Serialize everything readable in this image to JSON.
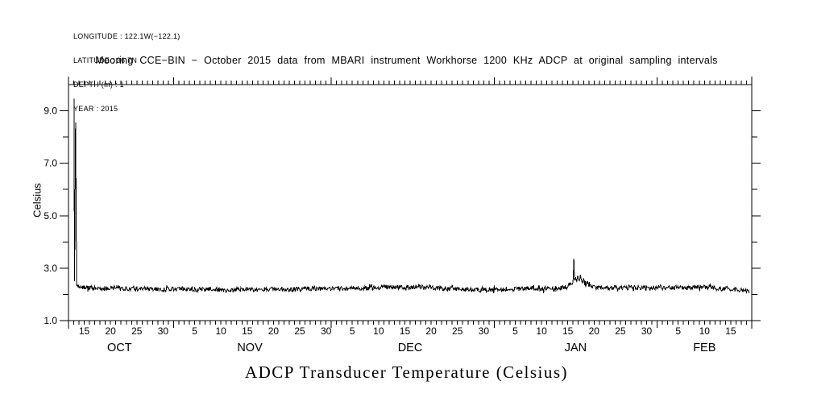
{
  "meta": {
    "lines": [
      "LONGITUDE : 122.1W(−122.1)",
      "LATITUDE : 36.7N",
      "DEPTH (m) : 1",
      "YEAR : 2015"
    ]
  },
  "header": {
    "title": "Mooring CCE−BIN − October 2015 data from MBARI instrument Workhorse 1200 KHz ADCP at original sampling intervals"
  },
  "footer": {
    "title": "ADCP Transducer Temperature (Celsius)"
  },
  "colors": {
    "stroke": "#000000",
    "background": "#ffffff"
  },
  "chart_data": {
    "type": "line",
    "title": "Mooring CCE−BIN − October 2015 data from MBARI instrument Workhorse 1200 KHz ADCP at original sampling intervals",
    "xlabel": "",
    "ylabel": "Celsius",
    "ylim": [
      1.0,
      10.0
    ],
    "grid": false,
    "legend": "none",
    "y_axis": {
      "min": 1.0,
      "max": 10.0,
      "major_ticks": [
        1,
        3,
        5,
        7,
        9
      ],
      "minor_ticks": [
        2,
        4,
        6,
        8
      ],
      "labels": [
        {
          "value": 9,
          "text": "9.0"
        },
        {
          "value": 7,
          "text": "7.0"
        },
        {
          "value": 5,
          "text": "5.0"
        },
        {
          "value": 3,
          "text": "3.0"
        },
        {
          "value": 1,
          "text": "1.0"
        }
      ]
    },
    "x_axis": {
      "start": "2015-10-12",
      "end": "2016-02-19",
      "span_days": 130,
      "tick_every_days": 1,
      "month_boundaries": [
        20,
        50,
        81,
        112
      ],
      "month_labels": [
        {
          "text": "OCT",
          "center_day": 9.7
        },
        {
          "text": "NOV",
          "center_day": 34.5
        },
        {
          "text": "DEC",
          "center_day": 65
        },
        {
          "text": "JAN",
          "center_day": 96.5
        },
        {
          "text": "FEB",
          "center_day": 121
        }
      ],
      "day_labels": [
        {
          "day": 3,
          "text": "15"
        },
        {
          "day": 8,
          "text": "20"
        },
        {
          "day": 13,
          "text": "25"
        },
        {
          "day": 18,
          "text": "30"
        },
        {
          "day": 24,
          "text": "5"
        },
        {
          "day": 29,
          "text": "10"
        },
        {
          "day": 34,
          "text": "15"
        },
        {
          "day": 39,
          "text": "20"
        },
        {
          "day": 44,
          "text": "25"
        },
        {
          "day": 49,
          "text": "30"
        },
        {
          "day": 54,
          "text": "5"
        },
        {
          "day": 59,
          "text": "10"
        },
        {
          "day": 64,
          "text": "15"
        },
        {
          "day": 69,
          "text": "20"
        },
        {
          "day": 74,
          "text": "25"
        },
        {
          "day": 79,
          "text": "30"
        },
        {
          "day": 85,
          "text": "5"
        },
        {
          "day": 90,
          "text": "10"
        },
        {
          "day": 95,
          "text": "15"
        },
        {
          "day": 100,
          "text": "20"
        },
        {
          "day": 105,
          "text": "25"
        },
        {
          "day": 110,
          "text": "30"
        },
        {
          "day": 116,
          "text": "5"
        },
        {
          "day": 121,
          "text": "10"
        },
        {
          "day": 126,
          "text": "15"
        }
      ]
    },
    "series": [
      {
        "name": "ADCP transducer temperature",
        "points": [
          [
            1.05,
            9.46
          ],
          [
            1.15,
            2.5
          ],
          [
            1.35,
            8.55
          ],
          [
            1.55,
            2.35
          ],
          [
            3,
            2.27
          ],
          [
            6,
            2.22
          ],
          [
            9,
            2.25
          ],
          [
            12,
            2.2
          ],
          [
            15,
            2.23
          ],
          [
            18,
            2.18
          ],
          [
            21,
            2.22
          ],
          [
            24,
            2.17
          ],
          [
            27,
            2.21
          ],
          [
            30,
            2.16
          ],
          [
            33,
            2.2
          ],
          [
            36,
            2.18
          ],
          [
            39,
            2.22
          ],
          [
            42,
            2.18
          ],
          [
            45,
            2.23
          ],
          [
            48,
            2.2
          ],
          [
            51,
            2.22
          ],
          [
            54,
            2.25
          ],
          [
            57,
            2.23
          ],
          [
            60,
            2.28
          ],
          [
            63,
            2.27
          ],
          [
            66,
            2.29
          ],
          [
            69,
            2.25
          ],
          [
            72,
            2.22
          ],
          [
            75,
            2.2
          ],
          [
            78,
            2.17
          ],
          [
            81,
            2.19
          ],
          [
            84,
            2.21
          ],
          [
            87,
            2.22
          ],
          [
            90,
            2.21
          ],
          [
            93,
            2.23
          ],
          [
            95,
            2.28
          ],
          [
            95.5,
            2.42
          ],
          [
            95.8,
            2.3
          ],
          [
            96.0,
            2.5
          ],
          [
            96.15,
            3.35
          ],
          [
            96.3,
            2.55
          ],
          [
            96.5,
            2.7
          ],
          [
            96.7,
            2.5
          ],
          [
            96.9,
            2.78
          ],
          [
            97.1,
            2.55
          ],
          [
            97.4,
            2.65
          ],
          [
            97.7,
            2.45
          ],
          [
            98.0,
            2.55
          ],
          [
            98.4,
            2.38
          ],
          [
            98.8,
            2.45
          ],
          [
            99.2,
            2.32
          ],
          [
            100,
            2.28
          ],
          [
            102,
            2.24
          ],
          [
            104,
            2.27
          ],
          [
            106,
            2.24
          ],
          [
            108,
            2.27
          ],
          [
            110,
            2.24
          ],
          [
            112,
            2.27
          ],
          [
            114,
            2.24
          ],
          [
            116,
            2.26
          ],
          [
            118,
            2.24
          ],
          [
            120,
            2.28
          ],
          [
            122,
            2.26
          ],
          [
            124,
            2.22
          ],
          [
            126,
            2.2
          ],
          [
            127.5,
            2.17
          ],
          [
            129,
            2.14
          ],
          [
            129.5,
            2.1
          ]
        ]
      }
    ],
    "noise": {
      "seed": 20151012,
      "step_days": 0.1,
      "start_day": 1.6,
      "amplitude_profile": [
        [
          1.6,
          0.085
        ],
        [
          95.5,
          0.085
        ],
        [
          96.0,
          0.04
        ],
        [
          96.35,
          0.04
        ],
        [
          96.6,
          0.11
        ],
        [
          98.5,
          0.11
        ],
        [
          99.5,
          0.09
        ],
        [
          129.5,
          0.082
        ]
      ]
    }
  }
}
